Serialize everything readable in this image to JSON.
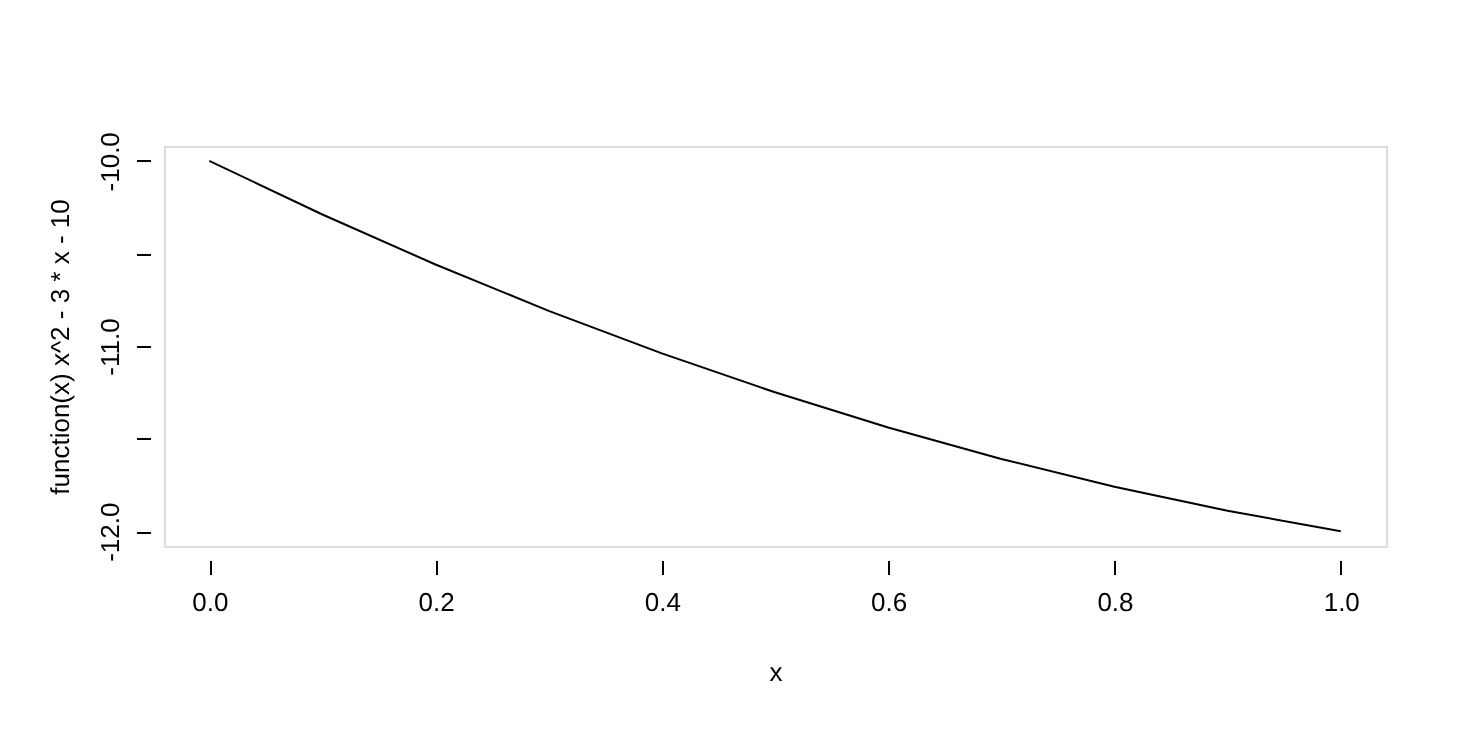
{
  "chart_data": {
    "type": "line",
    "xlabel": "x",
    "ylabel": "function(x) x^2 - 3 * x - 10",
    "x": [
      0,
      0.1,
      0.2,
      0.3,
      0.4,
      0.5,
      0.6,
      0.7,
      0.8,
      0.9,
      1.0
    ],
    "series": [
      {
        "color": "#000000",
        "values": [
          -10,
          -10.29,
          -10.56,
          -10.81,
          -11.04,
          -11.25,
          -11.44,
          -11.61,
          -11.76,
          -11.89,
          -12
        ]
      }
    ],
    "xlim": [
      -0.04,
      1.04
    ],
    "ylim": [
      -12.08,
      -9.92
    ],
    "xticks": [
      {
        "value": 0,
        "label": "0.0"
      },
      0.2,
      0.4,
      0.6,
      0.8,
      {
        "value": 1,
        "label": "1.0"
      }
    ],
    "yticks": [
      {
        "value": -12,
        "label": "-12.0"
      },
      {
        "value": -11.5,
        "label": null
      },
      {
        "value": -11,
        "label": "-11.0"
      },
      {
        "value": -10.5,
        "label": null
      },
      {
        "value": -10,
        "label": "-10.0"
      }
    ],
    "line_style": "solid",
    "grid": false
  }
}
